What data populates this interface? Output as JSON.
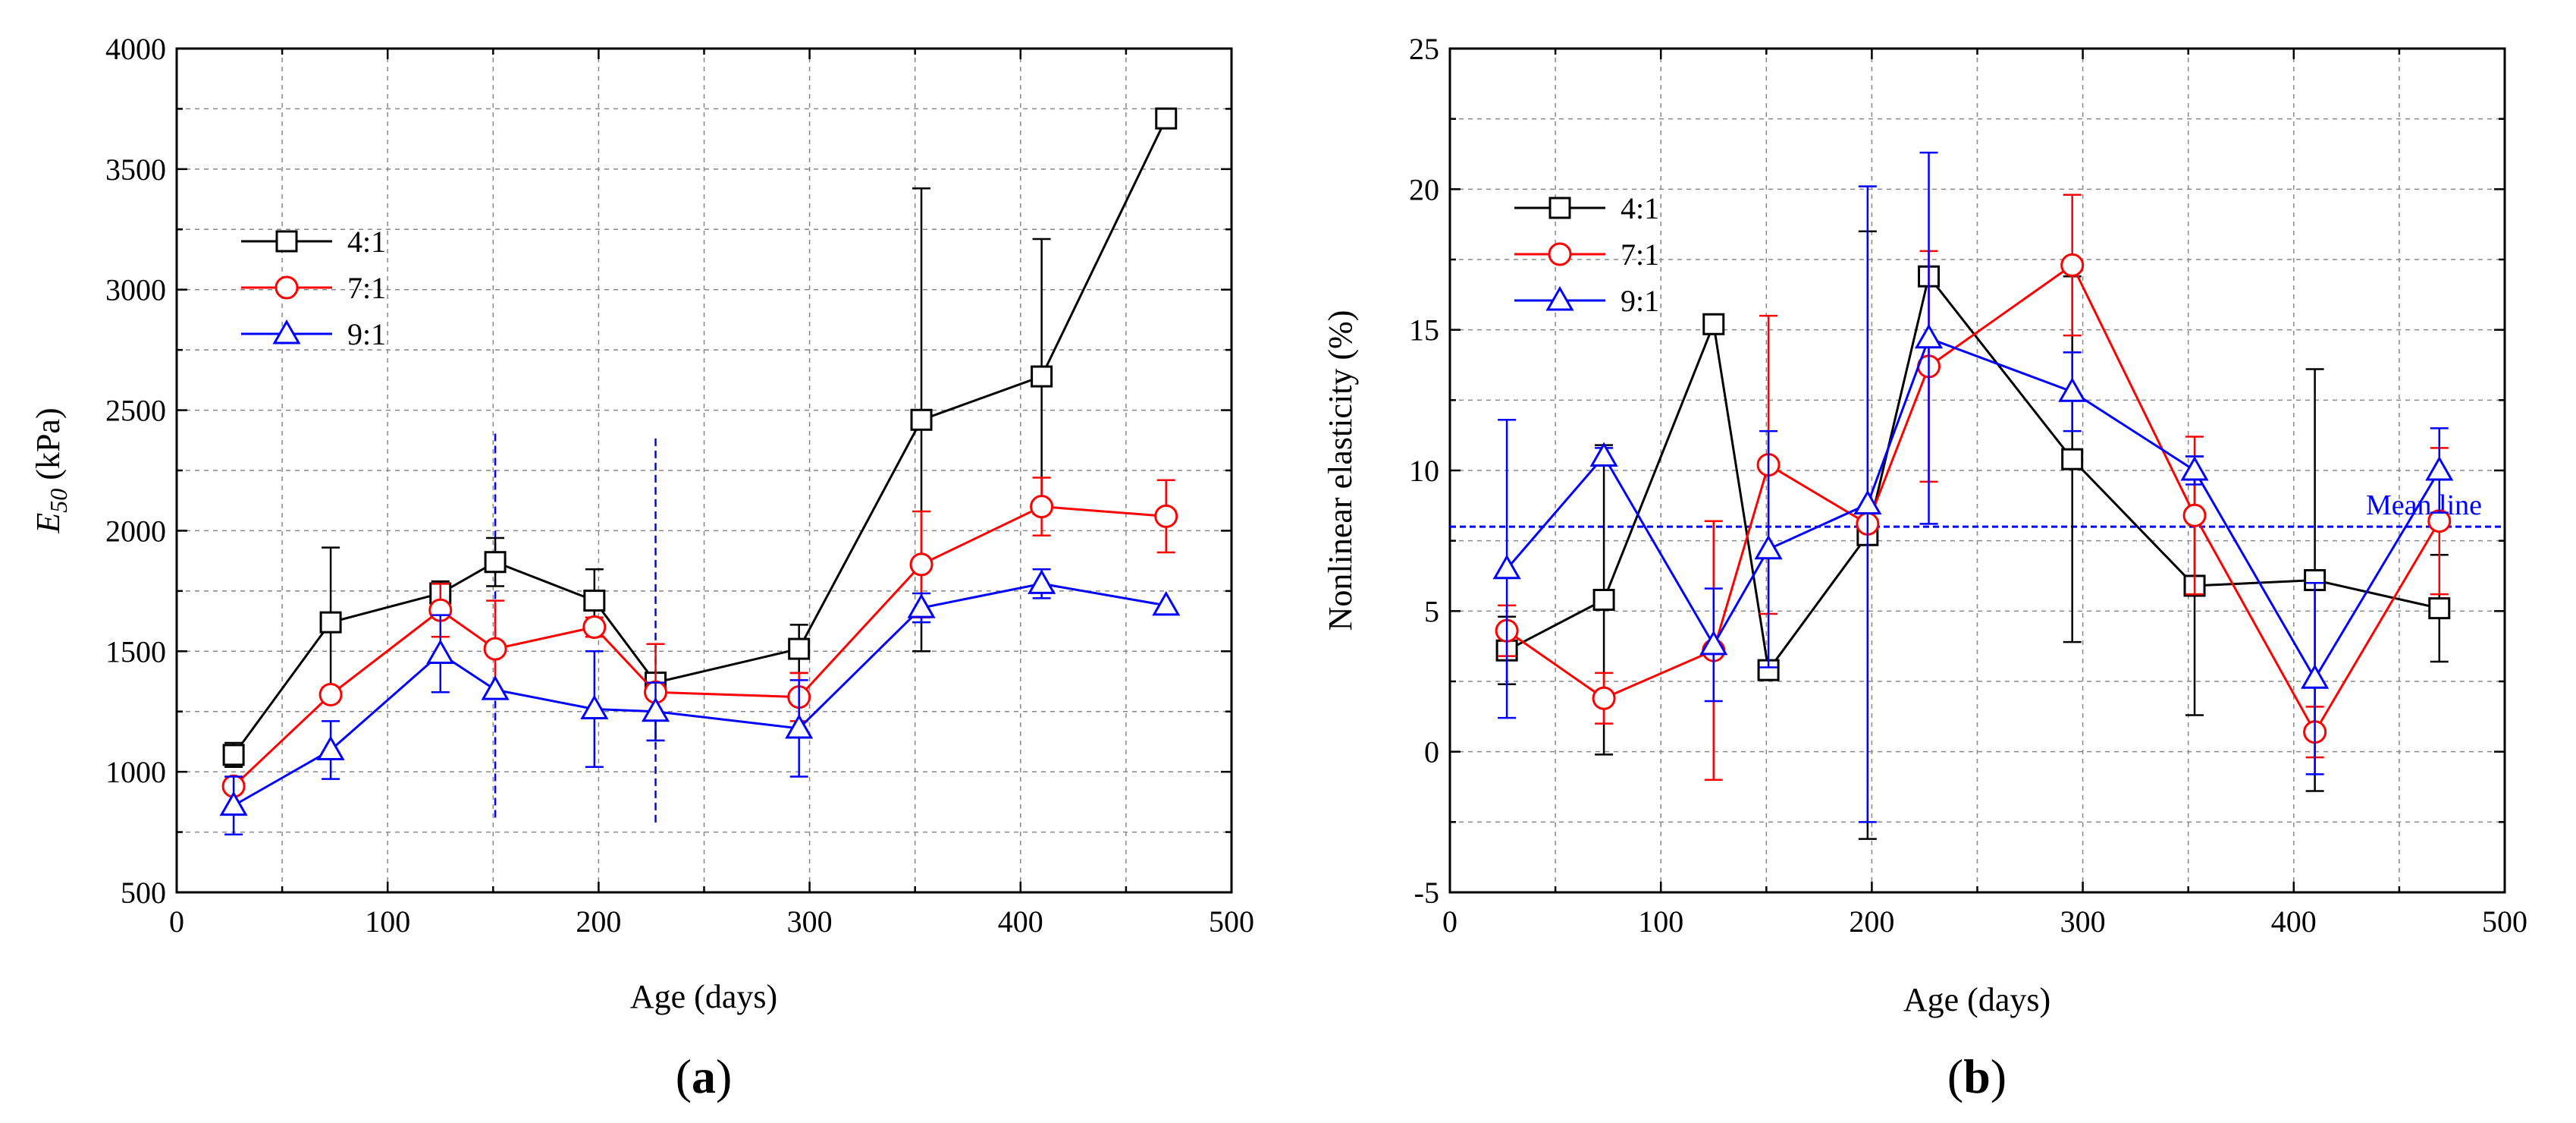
{
  "chart_data": [
    {
      "type": "line",
      "panel_label_open": "(",
      "panel_label": "a",
      "panel_label_close": ")",
      "xlabel": "Age (days)",
      "ylabel_main": "E",
      "ylabel_sub": "50",
      "ylabel_unit": " (kPa)",
      "xlim": [
        0,
        500
      ],
      "ylim": [
        500,
        4000
      ],
      "xticks": [
        0,
        100,
        200,
        300,
        400,
        500
      ],
      "yticks": [
        500,
        1000,
        1500,
        2000,
        2500,
        3000,
        3500,
        4000
      ],
      "grid": true,
      "legend_position": "upper-left",
      "series": [
        {
          "name": "4:1",
          "color": "#000000",
          "marker": "square",
          "x": [
            27,
            73,
            125,
            151,
            198,
            227,
            295,
            353,
            410,
            469
          ],
          "y": [
            1070,
            1620,
            1740,
            1870,
            1710,
            1370,
            1510,
            2460,
            2640,
            3710
          ],
          "err": [
            50,
            310,
            50,
            100,
            130,
            40,
            100,
            960,
            570,
            0
          ]
        },
        {
          "name": "7:1",
          "color": "#ff0000",
          "marker": "circle",
          "x": [
            27,
            73,
            125,
            151,
            198,
            227,
            295,
            353,
            410,
            469
          ],
          "y": [
            940,
            1320,
            1670,
            1510,
            1600,
            1330,
            1310,
            1860,
            2100,
            2060
          ],
          "err": [
            0,
            30,
            110,
            200,
            40,
            200,
            100,
            220,
            120,
            150
          ]
        },
        {
          "name": "9:1",
          "color": "#0000ff",
          "marker": "triangle",
          "x": [
            27,
            73,
            125,
            151,
            198,
            227,
            295,
            353,
            410,
            469
          ],
          "y": [
            860,
            1090,
            1490,
            1340,
            1260,
            1250,
            1180,
            1680,
            1780,
            1690
          ],
          "err": [
            120,
            120,
            160,
            0,
            240,
            120,
            200,
            60,
            60,
            0
          ]
        }
      ],
      "reference_lines": [
        {
          "orientation": "vertical",
          "x": 151,
          "y_range": [
            810,
            2420
          ],
          "color": "#0000ff",
          "style": "dashed"
        },
        {
          "orientation": "vertical",
          "x": 227,
          "y_range": [
            790,
            2400
          ],
          "color": "#0000ff",
          "style": "dashed"
        }
      ]
    },
    {
      "type": "line",
      "panel_label_open": "(",
      "panel_label": "b",
      "panel_label_close": ")",
      "xlabel": "Age (days)",
      "ylabel": "Nonlinear elasticity (%)",
      "xlim": [
        0,
        500
      ],
      "ylim": [
        -5,
        25
      ],
      "xticks": [
        0,
        100,
        200,
        300,
        400,
        500
      ],
      "yticks": [
        -5,
        0,
        5,
        10,
        15,
        20,
        25
      ],
      "grid": true,
      "legend_position": "upper-left",
      "series": [
        {
          "name": "4:1",
          "color": "#000000",
          "marker": "square",
          "x": [
            27,
            73,
            125,
            151,
            198,
            227,
            295,
            353,
            410,
            469
          ],
          "y": [
            3.6,
            5.4,
            15.2,
            2.9,
            7.7,
            16.9,
            10.4,
            5.9,
            6.1,
            5.1
          ],
          "err": [
            1.2,
            5.5,
            0,
            0.2,
            10.8,
            0,
            6.5,
            4.6,
            7.5,
            1.9
          ]
        },
        {
          "name": "7:1",
          "color": "#ff0000",
          "marker": "circle",
          "x": [
            27,
            73,
            125,
            151,
            198,
            227,
            295,
            353,
            410,
            469
          ],
          "y": [
            4.3,
            1.9,
            3.6,
            10.2,
            8.1,
            13.7,
            17.3,
            8.4,
            0.7,
            8.2
          ],
          "err": [
            0.9,
            0.9,
            4.6,
            5.3,
            0,
            4.1,
            2.5,
            2.8,
            0.9,
            2.6
          ]
        },
        {
          "name": "9:1",
          "color": "#0000ff",
          "marker": "triangle",
          "x": [
            27,
            73,
            125,
            151,
            198,
            227,
            295,
            353,
            410,
            469
          ],
          "y": [
            6.5,
            10.5,
            3.8,
            7.2,
            8.8,
            14.7,
            12.8,
            10.0,
            2.6,
            10.0
          ],
          "err": [
            5.3,
            0.3,
            2.0,
            4.2,
            11.3,
            6.6,
            1.4,
            0.5,
            3.4,
            1.5
          ]
        }
      ],
      "reference_lines": [
        {
          "orientation": "horizontal",
          "y": 8.0,
          "color": "#0000ff",
          "style": "dashed",
          "label": "Mean line"
        }
      ]
    }
  ]
}
